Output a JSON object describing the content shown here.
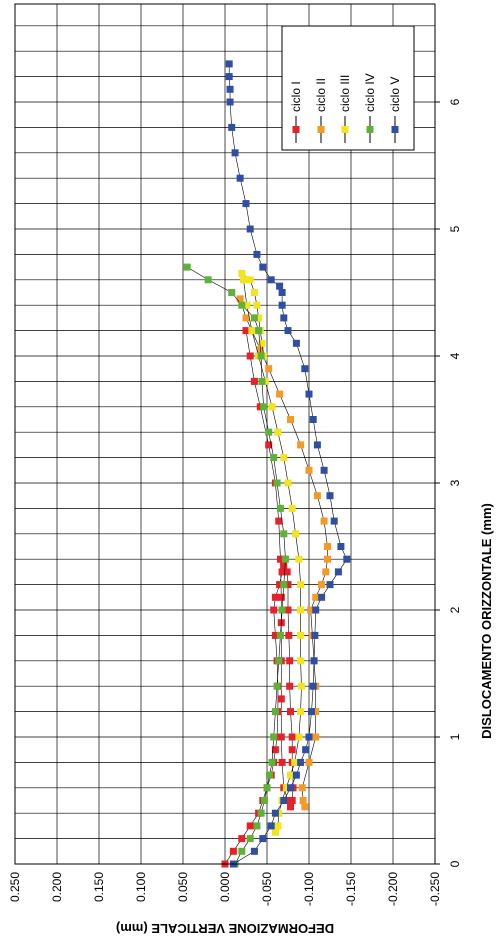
{
  "chart_data": {
    "type": "scatter",
    "xlabel": "DISLOCAMENTO ORIZZONTALE (mm)",
    "ylabel": "DEFORMAZIONE VERTICALE (mm)",
    "xlim": [
      0,
      6.75
    ],
    "ylim": [
      -0.25,
      0.25
    ],
    "x_ticks": [
      "0",
      "1",
      "2",
      "3",
      "4",
      "5",
      "6"
    ],
    "y_ticks": [
      "0.250",
      "0.200",
      "0.150",
      "0.100",
      "0.050",
      "0.000",
      "-0.050",
      "-0.100",
      "-0.150",
      "-0.200",
      "-0.250"
    ],
    "grid": true,
    "orientation": "rotated-90-clockwise",
    "legend_position": "top-right",
    "series": [
      {
        "name": "ciclo I",
        "color": "#e8202a",
        "x": [
          0.0,
          0.1,
          0.2,
          0.3,
          0.4,
          0.5,
          0.6,
          0.7,
          0.8,
          0.9,
          1.0,
          1.2,
          1.4,
          1.6,
          1.8,
          2.0,
          2.1,
          2.2,
          2.3,
          2.35,
          2.4,
          2.3,
          2.2,
          2.0,
          1.8,
          1.6,
          1.4,
          1.2,
          1.0,
          0.9,
          0.8,
          0.7,
          0.6,
          0.5,
          0.45,
          0.5,
          0.6,
          0.8,
          1.0,
          1.3,
          1.6,
          1.9,
          2.1,
          2.4,
          2.7,
          3.0,
          3.3,
          3.6,
          3.8,
          4.0,
          4.2
        ],
        "y": [
          0.0,
          -0.01,
          -0.02,
          -0.03,
          -0.04,
          -0.045,
          -0.05,
          -0.055,
          -0.058,
          -0.06,
          -0.062,
          -0.063,
          -0.063,
          -0.062,
          -0.06,
          -0.058,
          -0.06,
          -0.065,
          -0.068,
          -0.07,
          -0.07,
          -0.074,
          -0.075,
          -0.075,
          -0.076,
          -0.077,
          -0.077,
          -0.078,
          -0.08,
          -0.08,
          -0.08,
          -0.081,
          -0.081,
          -0.08,
          -0.078,
          -0.075,
          -0.07,
          -0.068,
          -0.067,
          -0.067,
          -0.067,
          -0.067,
          -0.067,
          -0.066,
          -0.064,
          -0.06,
          -0.052,
          -0.042,
          -0.035,
          -0.03,
          -0.025
        ]
      },
      {
        "name": "ciclo II",
        "color": "#f59a23",
        "x": [
          0.45,
          0.5,
          0.6,
          0.8,
          1.0,
          1.2,
          1.4,
          1.6,
          1.8,
          2.0,
          2.1,
          2.2,
          2.3,
          2.4,
          2.5,
          2.7,
          2.9,
          3.1,
          3.3,
          3.5,
          3.7,
          3.9,
          4.05,
          4.2,
          4.3,
          4.45
        ],
        "y": [
          -0.095,
          -0.093,
          -0.092,
          -0.1,
          -0.108,
          -0.108,
          -0.108,
          -0.106,
          -0.104,
          -0.102,
          -0.108,
          -0.115,
          -0.12,
          -0.122,
          -0.122,
          -0.118,
          -0.11,
          -0.1,
          -0.09,
          -0.078,
          -0.065,
          -0.052,
          -0.042,
          -0.032,
          -0.025,
          -0.018
        ]
      },
      {
        "name": "ciclo III",
        "color": "#f2e41d",
        "x": [
          0.25,
          0.3,
          0.4,
          0.5,
          0.6,
          0.7,
          0.8,
          1.0,
          1.2,
          1.4,
          1.6,
          1.8,
          2.0,
          2.2,
          2.4,
          2.6,
          2.8,
          3.0,
          3.2,
          3.4,
          3.6,
          3.8,
          4.0,
          4.2,
          4.4,
          4.6,
          4.65,
          4.6,
          4.5,
          4.4,
          4.3,
          4.2,
          4.1,
          4.0
        ],
        "y": [
          -0.06,
          -0.063,
          -0.064,
          -0.068,
          -0.073,
          -0.078,
          -0.083,
          -0.088,
          -0.09,
          -0.091,
          -0.09,
          -0.09,
          -0.09,
          -0.09,
          -0.088,
          -0.084,
          -0.08,
          -0.075,
          -0.07,
          -0.063,
          -0.056,
          -0.048,
          -0.04,
          -0.032,
          -0.026,
          -0.022,
          -0.02,
          -0.03,
          -0.035,
          -0.038,
          -0.04,
          -0.042,
          -0.044,
          -0.046
        ]
      },
      {
        "name": "ciclo IV",
        "color": "#5db336",
        "x": [
          0.0,
          0.1,
          0.2,
          0.3,
          0.4,
          0.5,
          0.6,
          0.7,
          0.8,
          1.0,
          1.2,
          1.4,
          1.6,
          1.8,
          2.0,
          2.2,
          2.4,
          2.6,
          2.8,
          3.0,
          3.2,
          3.4,
          3.6,
          3.8,
          4.0,
          4.2,
          4.3,
          4.4,
          4.5,
          4.6,
          4.7
        ],
        "y": [
          -0.012,
          -0.02,
          -0.03,
          -0.038,
          -0.043,
          -0.047,
          -0.05,
          -0.053,
          -0.056,
          -0.058,
          -0.06,
          -0.062,
          -0.064,
          -0.066,
          -0.068,
          -0.07,
          -0.072,
          -0.07,
          -0.066,
          -0.062,
          -0.058,
          -0.052,
          -0.046,
          -0.044,
          -0.043,
          -0.04,
          -0.035,
          -0.02,
          -0.008,
          0.02,
          0.045
        ]
      },
      {
        "name": "ciclo V",
        "color": "#2e4fa5",
        "x": [
          0.0,
          0.1,
          0.2,
          0.3,
          0.4,
          0.5,
          0.6,
          0.7,
          0.8,
          0.9,
          1.0,
          1.2,
          1.4,
          1.6,
          1.8,
          2.0,
          2.1,
          2.2,
          2.3,
          2.4,
          2.5,
          2.7,
          2.9,
          3.1,
          3.3,
          3.5,
          3.7,
          3.9,
          4.1,
          4.2,
          4.3,
          4.4,
          4.5,
          4.55,
          4.6,
          4.7,
          4.8,
          5.0,
          5.2,
          5.4,
          5.6,
          5.8,
          6.0,
          6.1,
          6.2,
          6.3
        ],
        "y": [
          -0.01,
          -0.035,
          -0.045,
          -0.055,
          -0.06,
          -0.07,
          -0.078,
          -0.085,
          -0.09,
          -0.096,
          -0.1,
          -0.103,
          -0.105,
          -0.106,
          -0.107,
          -0.108,
          -0.115,
          -0.125,
          -0.135,
          -0.145,
          -0.138,
          -0.13,
          -0.125,
          -0.118,
          -0.11,
          -0.105,
          -0.1,
          -0.095,
          -0.085,
          -0.075,
          -0.07,
          -0.068,
          -0.068,
          -0.065,
          -0.055,
          -0.045,
          -0.038,
          -0.03,
          -0.025,
          -0.018,
          -0.012,
          -0.008,
          -0.006,
          -0.006,
          -0.005,
          -0.005
        ]
      }
    ]
  }
}
